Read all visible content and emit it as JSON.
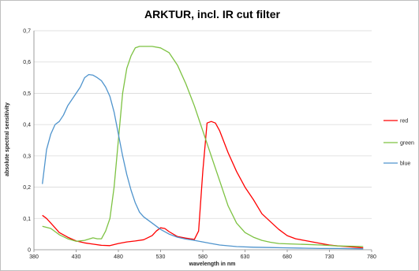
{
  "chart_data": {
    "type": "line",
    "title": "ARKTUR, incl. IR cut filter",
    "xlabel": "wavelength in nm",
    "ylabel": "absolute spectral sensitivity",
    "xlim": [
      380,
      780
    ],
    "ylim": [
      0,
      0.7
    ],
    "x_ticks": [
      380,
      430,
      480,
      530,
      580,
      630,
      680,
      730,
      780
    ],
    "y_ticks": [
      0,
      0.1,
      0.2,
      0.3,
      0.4,
      0.5,
      0.6,
      0.7
    ],
    "x_tick_labels": [
      "380",
      "430",
      "480",
      "530",
      "580",
      "630",
      "680",
      "730",
      "780"
    ],
    "y_tick_labels": [
      "0",
      "0,1",
      "0,2",
      "0,3",
      "0,4",
      "0,5",
      "0,6",
      "0,7"
    ],
    "grid": true,
    "legend_position": "right",
    "series": [
      {
        "name": "red",
        "color": "#ff0000",
        "points": [
          [
            390,
            0.11
          ],
          [
            395,
            0.1
          ],
          [
            400,
            0.085
          ],
          [
            405,
            0.07
          ],
          [
            410,
            0.055
          ],
          [
            420,
            0.04
          ],
          [
            430,
            0.028
          ],
          [
            440,
            0.022
          ],
          [
            450,
            0.018
          ],
          [
            460,
            0.014
          ],
          [
            470,
            0.013
          ],
          [
            480,
            0.02
          ],
          [
            490,
            0.025
          ],
          [
            500,
            0.028
          ],
          [
            510,
            0.032
          ],
          [
            520,
            0.045
          ],
          [
            525,
            0.06
          ],
          [
            530,
            0.07
          ],
          [
            535,
            0.068
          ],
          [
            540,
            0.058
          ],
          [
            550,
            0.042
          ],
          [
            560,
            0.037
          ],
          [
            570,
            0.033
          ],
          [
            575,
            0.06
          ],
          [
            580,
            0.25
          ],
          [
            585,
            0.405
          ],
          [
            590,
            0.41
          ],
          [
            595,
            0.405
          ],
          [
            600,
            0.38
          ],
          [
            610,
            0.31
          ],
          [
            620,
            0.25
          ],
          [
            630,
            0.2
          ],
          [
            640,
            0.16
          ],
          [
            650,
            0.115
          ],
          [
            660,
            0.09
          ],
          [
            670,
            0.065
          ],
          [
            680,
            0.045
          ],
          [
            690,
            0.035
          ],
          [
            700,
            0.03
          ],
          [
            710,
            0.025
          ],
          [
            720,
            0.02
          ],
          [
            730,
            0.015
          ],
          [
            740,
            0.012
          ],
          [
            750,
            0.01
          ],
          [
            760,
            0.008
          ],
          [
            770,
            0.006
          ]
        ]
      },
      {
        "name": "green",
        "color": "#7dc242",
        "points": [
          [
            390,
            0.075
          ],
          [
            400,
            0.068
          ],
          [
            410,
            0.048
          ],
          [
            420,
            0.035
          ],
          [
            430,
            0.027
          ],
          [
            440,
            0.03
          ],
          [
            450,
            0.038
          ],
          [
            455,
            0.035
          ],
          [
            460,
            0.035
          ],
          [
            465,
            0.06
          ],
          [
            470,
            0.1
          ],
          [
            475,
            0.2
          ],
          [
            480,
            0.35
          ],
          [
            485,
            0.5
          ],
          [
            490,
            0.58
          ],
          [
            495,
            0.62
          ],
          [
            500,
            0.645
          ],
          [
            505,
            0.65
          ],
          [
            510,
            0.65
          ],
          [
            520,
            0.65
          ],
          [
            530,
            0.645
          ],
          [
            540,
            0.63
          ],
          [
            550,
            0.59
          ],
          [
            560,
            0.53
          ],
          [
            570,
            0.46
          ],
          [
            580,
            0.38
          ],
          [
            590,
            0.3
          ],
          [
            600,
            0.22
          ],
          [
            610,
            0.14
          ],
          [
            620,
            0.085
          ],
          [
            630,
            0.055
          ],
          [
            640,
            0.04
          ],
          [
            650,
            0.03
          ],
          [
            660,
            0.024
          ],
          [
            670,
            0.02
          ],
          [
            680,
            0.019
          ],
          [
            700,
            0.017
          ],
          [
            720,
            0.015
          ],
          [
            740,
            0.012
          ],
          [
            760,
            0.011
          ],
          [
            770,
            0.01
          ]
        ]
      },
      {
        "name": "blue",
        "color": "#4f94cd",
        "points": [
          [
            390,
            0.21
          ],
          [
            395,
            0.32
          ],
          [
            400,
            0.37
          ],
          [
            405,
            0.4
          ],
          [
            410,
            0.41
          ],
          [
            415,
            0.43
          ],
          [
            420,
            0.46
          ],
          [
            430,
            0.5
          ],
          [
            435,
            0.52
          ],
          [
            440,
            0.55
          ],
          [
            445,
            0.56
          ],
          [
            450,
            0.558
          ],
          [
            455,
            0.55
          ],
          [
            460,
            0.54
          ],
          [
            465,
            0.52
          ],
          [
            470,
            0.49
          ],
          [
            475,
            0.44
          ],
          [
            480,
            0.37
          ],
          [
            485,
            0.3
          ],
          [
            490,
            0.24
          ],
          [
            495,
            0.19
          ],
          [
            500,
            0.15
          ],
          [
            505,
            0.12
          ],
          [
            510,
            0.105
          ],
          [
            520,
            0.085
          ],
          [
            530,
            0.065
          ],
          [
            540,
            0.05
          ],
          [
            550,
            0.04
          ],
          [
            560,
            0.034
          ],
          [
            570,
            0.03
          ],
          [
            580,
            0.025
          ],
          [
            590,
            0.02
          ],
          [
            600,
            0.015
          ],
          [
            620,
            0.01
          ],
          [
            640,
            0.008
          ],
          [
            660,
            0.007
          ],
          [
            680,
            0.006
          ],
          [
            700,
            0.005
          ],
          [
            720,
            0.004
          ],
          [
            740,
            0.004
          ],
          [
            770,
            0.003
          ]
        ]
      }
    ]
  }
}
